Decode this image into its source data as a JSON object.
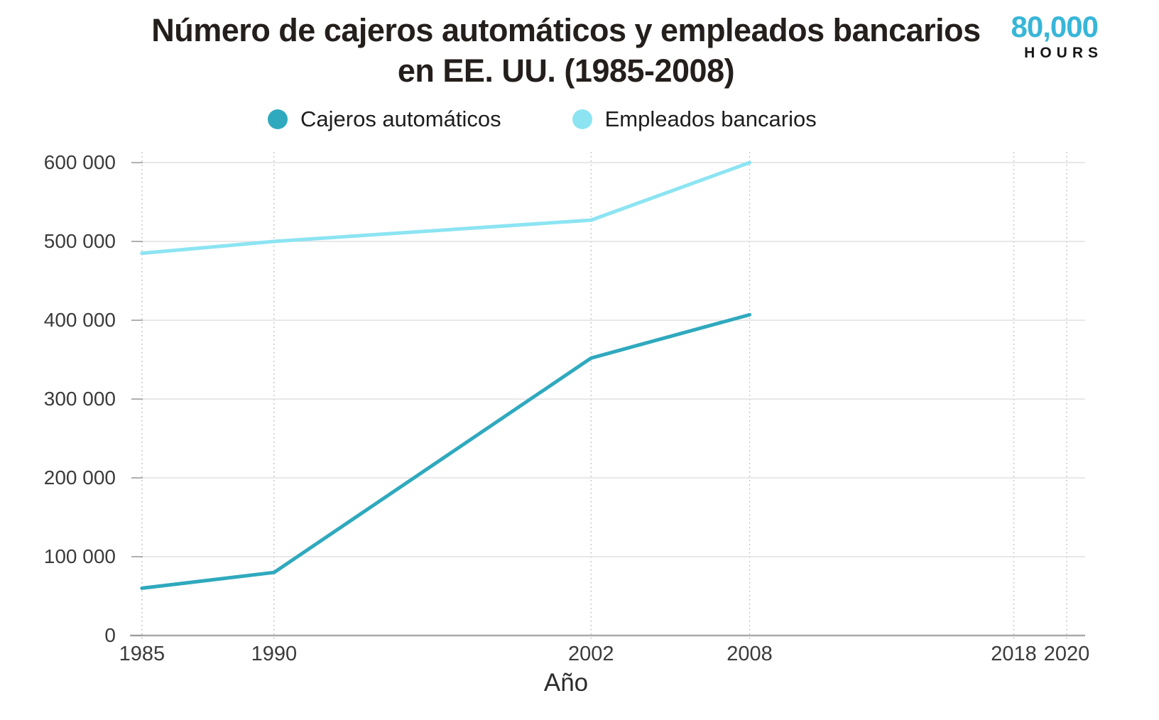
{
  "title": {
    "line1": "Número de cajeros automáticos y empleados bancarios",
    "line2": "en EE. UU. (1985-2008)"
  },
  "logo": {
    "number": "80,000",
    "word": "HOURS",
    "number_color": "#38b6d8"
  },
  "legend": {
    "items": [
      {
        "label": "Cajeros automáticos",
        "color": "#2fa9be"
      },
      {
        "label": "Empleados bancarios",
        "color": "#8ce4f2"
      }
    ]
  },
  "chart_data": {
    "type": "line",
    "title": "Número de cajeros automáticos y empleados bancarios en EE. UU. (1985-2008)",
    "xlabel": "Año",
    "ylabel": "",
    "x": [
      1985,
      1990,
      2002,
      2008
    ],
    "series": [
      {
        "id": "cajeros-automaticos",
        "name": "Cajeros automáticos",
        "color": "#2fa9be",
        "values": [
          60000,
          80000,
          352000,
          407000
        ]
      },
      {
        "id": "empleados-bancarios",
        "name": "Empleados bancarios",
        "color": "#8ce4f2",
        "values": [
          485000,
          500000,
          527000,
          600000
        ]
      }
    ],
    "x_ticks": [
      1985,
      1990,
      2002,
      2008,
      2018,
      2020
    ],
    "x_tick_labels": [
      "1985",
      "1990",
      "2002",
      "2008",
      "2018",
      "2020"
    ],
    "y_ticks": [
      0,
      100000,
      200000,
      300000,
      400000,
      500000,
      600000
    ],
    "y_tick_labels": [
      "0",
      "100 000",
      "200 000",
      "300 000",
      "400 000",
      "500 000",
      "600 000"
    ],
    "xlim": [
      1984.6,
      2020.7
    ],
    "ylim": [
      0,
      600000
    ],
    "grid": {
      "horizontal": "solid",
      "vertical": "dotted"
    },
    "legend_position": "top",
    "colors": {
      "h_gridline": "#d9d9d9",
      "v_gridline": "#b5b5b5",
      "baseline": "#a9a9a9",
      "tick_mark": "#999999",
      "tick_text": "#3b3b3b"
    }
  }
}
